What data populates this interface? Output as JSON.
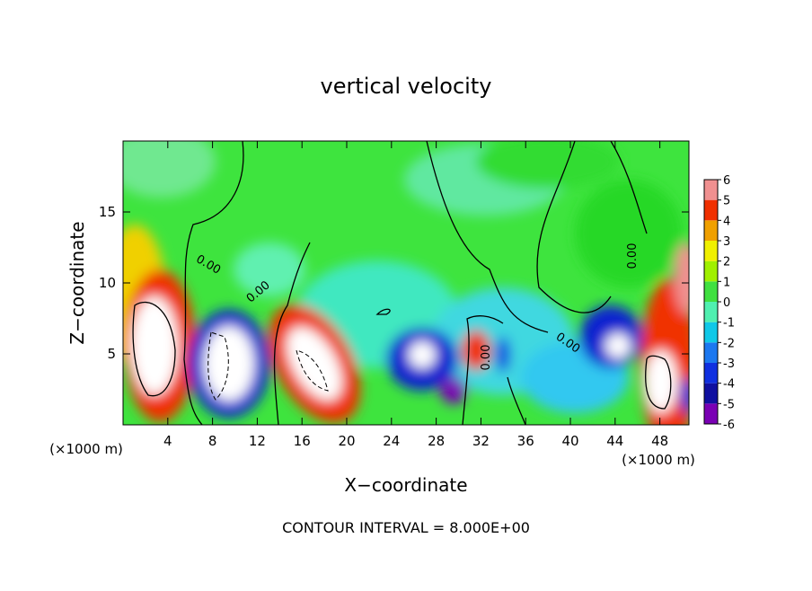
{
  "chart_data": {
    "type": "contour",
    "title": "vertical velocity",
    "xlabel": "X−coordinate",
    "ylabel": "Z−coordinate",
    "x_unit_left": "(×1000 m)",
    "x_unit_right": "(×1000 m)",
    "xlim": [
      0,
      50.6
    ],
    "xticks": [
      4,
      8,
      12,
      16,
      20,
      24,
      28,
      32,
      36,
      40,
      44,
      48
    ],
    "ylim": [
      0,
      20
    ],
    "yticks": [
      5,
      10,
      15
    ],
    "colorbar": {
      "lim": [
        -6,
        6
      ],
      "ticks": [
        -6,
        -5,
        -4,
        -3,
        -2,
        -1,
        0,
        1,
        2,
        3,
        4,
        5,
        6
      ],
      "colors": [
        "#7a00b4",
        "#1010a0",
        "#1030e0",
        "#1c78f0",
        "#10c8e8",
        "#50f0b0",
        "#40e040",
        "#a0f000",
        "#f0f000",
        "#f0a000",
        "#f03000",
        "#f09090"
      ]
    },
    "contour_labels": [
      "0.00",
      "0.00",
      "0.00",
      "0.00",
      "0.00"
    ],
    "note": "CONTOUR INTERVAL = 8.000E+00"
  }
}
